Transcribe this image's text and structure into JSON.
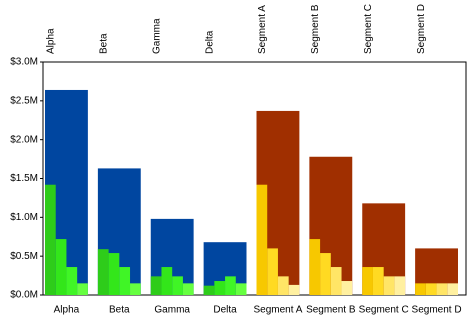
{
  "chart_data": {
    "type": "bar",
    "categories": [
      "Alpha",
      "Beta",
      "Gamma",
      "Delta",
      "Segment A",
      "Segment B",
      "Segment C",
      "Segment D"
    ],
    "series": [
      {
        "colors": [
          "#0046a0",
          "#0046a0",
          "#0046a0",
          "#0046a0",
          "#a02f00",
          "#a02f00",
          "#a02f00",
          "#a02f00"
        ],
        "values": [
          2.64,
          1.63,
          0.98,
          0.68,
          2.37,
          1.78,
          1.18,
          0.6
        ]
      },
      {
        "colors": [
          "#2ecc1a",
          "#2ecc1a",
          "#2ecc1a",
          "#2ecc1a",
          "#f7c800",
          "#f7c800",
          "#f7c800",
          "#f7c800"
        ],
        "values": [
          1.42,
          0.59,
          0.24,
          0.12,
          1.42,
          0.72,
          0.36,
          0.15
        ]
      },
      {
        "colors": [
          "#33e61a",
          "#33e61a",
          "#33e61a",
          "#33e61a",
          "#ffda22",
          "#ffda22",
          "#ffda22",
          "#ffda22"
        ],
        "values": [
          0.72,
          0.54,
          0.36,
          0.18,
          0.6,
          0.54,
          0.36,
          0.15
        ]
      },
      {
        "colors": [
          "#40f526",
          "#40f526",
          "#40f526",
          "#40f526",
          "#ffe566",
          "#ffe566",
          "#ffe566",
          "#ffe566"
        ],
        "values": [
          0.36,
          0.36,
          0.24,
          0.24,
          0.24,
          0.36,
          0.24,
          0.15
        ]
      },
      {
        "colors": [
          "#66ff40",
          "#66ff40",
          "#66ff40",
          "#66ff40",
          "#fff0a0",
          "#fff0a0",
          "#fff0a0",
          "#fff0a0"
        ],
        "values": [
          0.15,
          0.15,
          0.15,
          0.15,
          0.13,
          0.18,
          0.24,
          0.15
        ]
      }
    ],
    "ylim": [
      0,
      3
    ],
    "yticks": [
      {
        "value": 0,
        "label": "$0.0M"
      },
      {
        "value": 0.5,
        "label": "$0.5M"
      },
      {
        "value": 1,
        "label": "$1.0M"
      },
      {
        "value": 1.5,
        "label": "$1.5M"
      },
      {
        "value": 2,
        "label": "$2.0M"
      },
      {
        "value": 2.5,
        "label": "$2.5M"
      },
      {
        "value": 3,
        "label": "$3.0M"
      }
    ]
  }
}
